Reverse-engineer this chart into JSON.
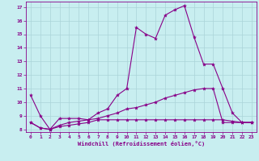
{
  "title": "",
  "xlabel": "Windchill (Refroidissement éolien,°C)",
  "background_color": "#c8eef0",
  "grid_color": "#aad4d8",
  "line_color": "#880088",
  "xlim": [
    -0.5,
    23.5
  ],
  "ylim": [
    7.8,
    17.4
  ],
  "yticks": [
    8,
    9,
    10,
    11,
    12,
    13,
    14,
    15,
    16,
    17
  ],
  "xticks": [
    0,
    1,
    2,
    3,
    4,
    5,
    6,
    7,
    8,
    9,
    10,
    11,
    12,
    13,
    14,
    15,
    16,
    17,
    18,
    19,
    20,
    21,
    22,
    23
  ],
  "line1_x": [
    0,
    1,
    2,
    3,
    4,
    5,
    6,
    7,
    8,
    9,
    10,
    11,
    12,
    13,
    14,
    15,
    16,
    17,
    18,
    19,
    20,
    21,
    22,
    23
  ],
  "line1_y": [
    10.5,
    9.0,
    8.0,
    8.8,
    8.8,
    8.8,
    8.7,
    9.2,
    9.5,
    10.5,
    11.0,
    15.5,
    15.0,
    14.7,
    16.4,
    16.8,
    17.1,
    14.8,
    12.8,
    12.8,
    11.0,
    9.2,
    8.5,
    8.5
  ],
  "line2_x": [
    0,
    1,
    2,
    3,
    4,
    5,
    6,
    7,
    8,
    9,
    10,
    11,
    12,
    13,
    14,
    15,
    16,
    17,
    18,
    19,
    20,
    21,
    22,
    23
  ],
  "line2_y": [
    8.5,
    8.1,
    8.0,
    8.3,
    8.5,
    8.6,
    8.7,
    8.8,
    9.0,
    9.2,
    9.5,
    9.6,
    9.8,
    10.0,
    10.3,
    10.5,
    10.7,
    10.9,
    11.0,
    11.0,
    8.5,
    8.5,
    8.5,
    8.5
  ],
  "line3_x": [
    0,
    1,
    2,
    3,
    4,
    5,
    6,
    7,
    8,
    9,
    10,
    11,
    12,
    13,
    14,
    15,
    16,
    17,
    18,
    19,
    20,
    21,
    22,
    23
  ],
  "line3_y": [
    8.5,
    8.1,
    8.0,
    8.2,
    8.3,
    8.4,
    8.5,
    8.7,
    8.7,
    8.7,
    8.7,
    8.7,
    8.7,
    8.7,
    8.7,
    8.7,
    8.7,
    8.7,
    8.7,
    8.7,
    8.7,
    8.6,
    8.5,
    8.5
  ]
}
